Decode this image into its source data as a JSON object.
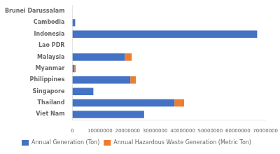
{
  "chart_data": {
    "type": "bar",
    "orientation": "horizontal",
    "stacked": true,
    "categories": [
      "Brunei Darussalam",
      "Cambodia",
      "Indonesia",
      "Lao PDR",
      "Malaysia",
      "Myanmar",
      "Philippines",
      "Singapore",
      "Thailand",
      "Viet Nam"
    ],
    "series": [
      {
        "name": "Annual Generation (Ton)",
        "color": "#4472C4",
        "values": [
          0,
          1000000,
          67000000,
          0,
          19000000,
          700000,
          21000000,
          7600000,
          37000000,
          26000000
        ]
      },
      {
        "name": "Annual Hazardous Waste Generation (Metric Ton)",
        "color": "#ED7D31",
        "values": [
          0,
          0,
          0,
          0,
          2500000,
          500000,
          2000000,
          0,
          3500000,
          0
        ]
      }
    ],
    "xlim": [
      0,
      70000000
    ],
    "xticks": [
      0,
      10000000,
      20000000,
      30000000,
      40000000,
      50000000,
      60000000,
      70000000
    ],
    "grid": false,
    "legend": "bottom"
  }
}
